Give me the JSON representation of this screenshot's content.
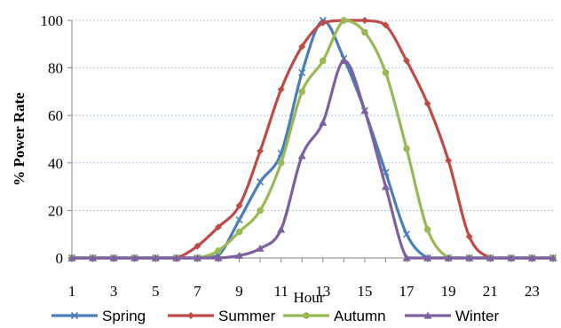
{
  "chart_data": {
    "type": "line",
    "xlabel": "Hour",
    "ylabel": "% Power Rate",
    "x": [
      1,
      2,
      3,
      4,
      5,
      6,
      7,
      8,
      9,
      10,
      11,
      12,
      13,
      14,
      15,
      16,
      17,
      18,
      19,
      20,
      21,
      22,
      23,
      24
    ],
    "x_tick_labels": [
      "1",
      "3",
      "5",
      "7",
      "9",
      "11",
      "13",
      "15",
      "17",
      "19",
      "21",
      "23"
    ],
    "y_ticks": [
      "0",
      "20",
      "40",
      "60",
      "80",
      "100"
    ],
    "ylim": [
      0,
      100
    ],
    "xlim": [
      1,
      24
    ],
    "grid": "horizontal dotted",
    "legend_position": "bottom",
    "series": [
      {
        "name": "Spring",
        "color": "#4a7ebb",
        "marker": "x",
        "values": [
          0,
          0,
          0,
          0,
          0,
          0,
          0,
          1,
          16,
          32,
          44,
          78,
          100,
          84,
          62,
          36,
          10,
          0,
          0,
          0,
          0,
          0,
          0,
          0
        ]
      },
      {
        "name": "Summer",
        "color": "#be4b48",
        "marker": "diamond",
        "values": [
          0,
          0,
          0,
          0,
          0,
          0,
          5,
          13,
          22,
          45,
          71,
          89,
          99,
          100,
          100,
          98,
          83,
          65,
          41,
          9,
          0,
          0,
          0,
          0
        ]
      },
      {
        "name": "Autumn",
        "color": "#98b954",
        "marker": "circle",
        "values": [
          0,
          0,
          0,
          0,
          0,
          0,
          0,
          3,
          11,
          20,
          40,
          70,
          83,
          100,
          95,
          78,
          46,
          12,
          0,
          0,
          0,
          0,
          0,
          0
        ]
      },
      {
        "name": "Winter",
        "color": "#7d60a0",
        "marker": "triangle",
        "values": [
          0,
          0,
          0,
          0,
          0,
          0,
          0,
          0,
          1,
          4,
          12,
          43,
          57,
          83,
          62,
          30,
          0,
          0,
          0,
          0,
          0,
          0,
          0,
          0
        ]
      }
    ]
  }
}
